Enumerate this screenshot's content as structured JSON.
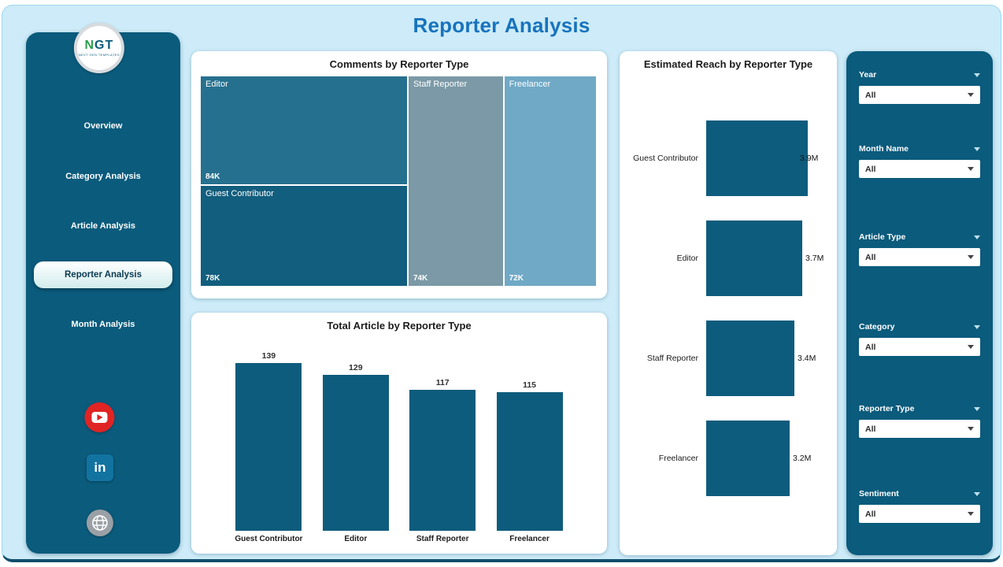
{
  "header": {
    "title": "Reporter Analysis"
  },
  "sidebar": {
    "logo": {
      "text": "NGT",
      "subtitle": "NEXT GEN TEMPLATES"
    },
    "items": [
      {
        "label": "Overview",
        "active": false
      },
      {
        "label": "Category Analysis",
        "active": false
      },
      {
        "label": "Article Analysis",
        "active": false
      },
      {
        "label": "Reporter Analysis",
        "active": true
      },
      {
        "label": "Month Analysis",
        "active": false
      }
    ],
    "socials": [
      {
        "name": "youtube"
      },
      {
        "name": "linkedin",
        "label": "in"
      },
      {
        "name": "website"
      }
    ]
  },
  "filters": {
    "slicers": [
      {
        "label": "Year",
        "value": "All"
      },
      {
        "label": "Month Name",
        "value": "All"
      },
      {
        "label": "Article Type",
        "value": "All"
      },
      {
        "label": "Category",
        "value": "All"
      },
      {
        "label": "Reporter Type",
        "value": "All"
      },
      {
        "label": "Sentiment",
        "value": "All"
      }
    ]
  },
  "colors": {
    "dark_teal": "#0b5b7c",
    "accent_blue": "#1873bd",
    "background": "#cdebf8",
    "youtube_red": "#e02424",
    "linkedin_blue": "#1273a0"
  },
  "chart_data": [
    {
      "type": "treemap",
      "title": "Comments by Reporter Type",
      "items": [
        {
          "label": "Editor",
          "value": 84000,
          "value_label": "84K",
          "color": "#26708f"
        },
        {
          "label": "Guest Contributor",
          "value": 78000,
          "value_label": "78K",
          "color": "#115e7e"
        },
        {
          "label": "Staff Reporter",
          "value": 74000,
          "value_label": "74K",
          "color": "#7b99a6"
        },
        {
          "label": "Freelancer",
          "value": 72000,
          "value_label": "72K",
          "color": "#70a9c6"
        }
      ],
      "layout": {
        "column_weights": [
          162,
          74,
          72
        ],
        "left_split": [
          84,
          78
        ],
        "legend": "off"
      }
    },
    {
      "type": "bar",
      "title": "Total Article by Reporter Type",
      "categories": [
        "Guest Contributor",
        "Editor",
        "Staff Reporter",
        "Freelancer"
      ],
      "values": [
        139,
        129,
        117,
        115
      ],
      "xlabel": "",
      "ylabel": "",
      "ylim": [
        0,
        150
      ],
      "grid": "off",
      "legend": "off"
    },
    {
      "type": "bar",
      "orientation": "horizontal",
      "title": "Estimated Reach by Reporter Type",
      "categories": [
        "Guest Contributor",
        "Editor",
        "Staff Reporter",
        "Freelancer"
      ],
      "values": [
        3.9,
        3.7,
        3.4,
        3.2
      ],
      "value_labels": [
        "3.9M",
        "3.7M",
        "3.4M",
        "3.2M"
      ],
      "unit": "M",
      "grid": "off",
      "legend": "off"
    }
  ]
}
